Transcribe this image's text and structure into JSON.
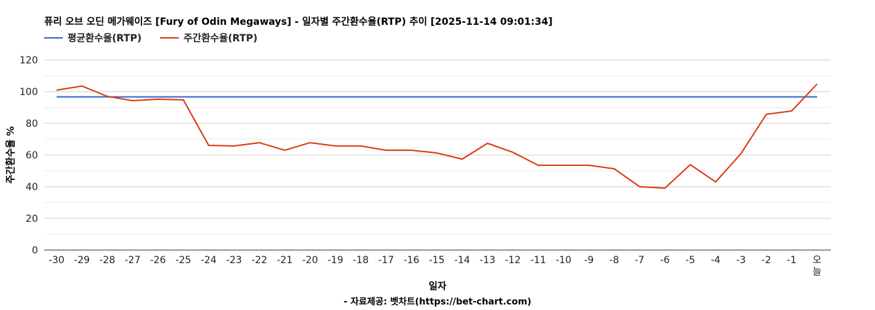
{
  "chart_data": {
    "type": "line",
    "title": "퓨리 오브 오딘 메가웨이즈 [Fury of Odin Megaways] - 일자별 주간환수율(RTP) 추이 [2025-11-14 09:01:34]",
    "xlabel": "일자",
    "ylabel": "주간환수율 %",
    "footer": "- 자료제공: 벳차트(https://bet-chart.com)",
    "ylim": [
      0,
      120
    ],
    "yticks": [
      0,
      20,
      40,
      60,
      80,
      100,
      120
    ],
    "grid": true,
    "legend_position": "top-left",
    "categories": [
      "-30",
      "-29",
      "-28",
      "-27",
      "-26",
      "-25",
      "-24",
      "-23",
      "-22",
      "-21",
      "-20",
      "-19",
      "-18",
      "-17",
      "-16",
      "-15",
      "-14",
      "-13",
      "-12",
      "-11",
      "-10",
      "-9",
      "-8",
      "-7",
      "-6",
      "-5",
      "-4",
      "-3",
      "-2",
      "-1",
      "오늘"
    ],
    "series": [
      {
        "name": "평균환수율(RTP)",
        "color": "#3366cc",
        "values": [
          96.7,
          96.7,
          96.7,
          96.7,
          96.7,
          96.7,
          96.7,
          96.7,
          96.7,
          96.7,
          96.7,
          96.7,
          96.7,
          96.7,
          96.7,
          96.7,
          96.7,
          96.7,
          96.7,
          96.7,
          96.7,
          96.7,
          96.7,
          96.7,
          96.7,
          96.7,
          96.7,
          96.7,
          96.7,
          96.7,
          96.7
        ]
      },
      {
        "name": "주간환수율(RTP)",
        "color": "#dc3912",
        "values": [
          100.9,
          103.5,
          97,
          94.3,
          95.2,
          94.8,
          66.1,
          65.7,
          67.8,
          63,
          67.8,
          65.7,
          65.7,
          63,
          63,
          61.3,
          57.4,
          67.4,
          61.7,
          53.5,
          53.5,
          53.5,
          51.3,
          40,
          39.1,
          53.9,
          43,
          60.9,
          85.7,
          87.8,
          104.8
        ]
      }
    ]
  }
}
